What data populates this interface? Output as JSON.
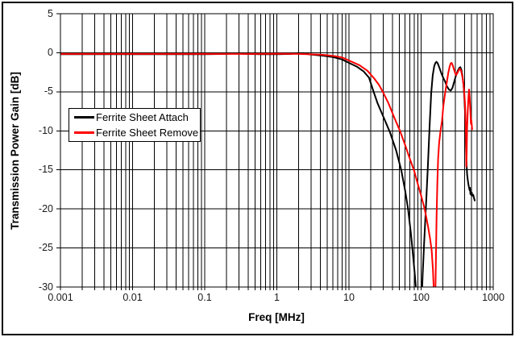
{
  "figure": {
    "background_color": "#ffffff",
    "border_color": "#000000",
    "grid_color": "#000000"
  },
  "chart_data": {
    "type": "line",
    "title": "",
    "xlabel": "Freq [MHz]",
    "ylabel": "Transmission Power Gain [dB]",
    "x_scale": "log",
    "x_range": [
      0.001,
      1000
    ],
    "y_range": [
      -30,
      5
    ],
    "y_tick_step": 5,
    "x_ticks": [
      "0.001",
      "0.01",
      "0.1",
      "1",
      "10",
      "100",
      "1000"
    ],
    "y_ticks": [
      "5",
      "0",
      "-5",
      "-10",
      "-15",
      "-20",
      "-25",
      "-30"
    ],
    "grid": "vertical log major+minor lines and horizontal 5 dB lines, solid black",
    "legend_position": "inside middle-left",
    "series": [
      {
        "name": "Ferrite Sheet Attach",
        "color": "#000000",
        "points": [
          [
            0.001,
            -0.18
          ],
          [
            0.005,
            -0.18
          ],
          [
            0.01,
            -0.18
          ],
          [
            0.05,
            -0.18
          ],
          [
            0.1,
            -0.18
          ],
          [
            0.2,
            -0.15
          ],
          [
            0.28,
            -0.06
          ],
          [
            0.35,
            -0.15
          ],
          [
            0.6,
            -0.18
          ],
          [
            1,
            -0.18
          ],
          [
            1.6,
            -0.15
          ],
          [
            1.9,
            -0.05
          ],
          [
            2.4,
            -0.05
          ],
          [
            2.8,
            -0.2
          ],
          [
            3.5,
            -0.3
          ],
          [
            4.5,
            -0.4
          ],
          [
            6,
            -0.55
          ],
          [
            8,
            -0.85
          ],
          [
            10,
            -1.3
          ],
          [
            13,
            -1.8
          ],
          [
            16,
            -2.4
          ],
          [
            19,
            -3.2
          ],
          [
            22,
            -5
          ],
          [
            25,
            -6.5
          ],
          [
            30,
            -8.2
          ],
          [
            37,
            -10.2
          ],
          [
            45,
            -12.5
          ],
          [
            53,
            -15
          ],
          [
            60,
            -17.6
          ],
          [
            66,
            -20
          ],
          [
            72,
            -23
          ],
          [
            76,
            -25.2
          ],
          [
            80,
            -27.4
          ],
          [
            84,
            -29.6
          ],
          [
            87,
            -32
          ],
          [
            96,
            -35
          ],
          [
            102,
            -31.5
          ],
          [
            105,
            -28.5
          ],
          [
            110,
            -24.5
          ],
          [
            117,
            -19.5
          ],
          [
            124,
            -14.5
          ],
          [
            131,
            -9.5
          ],
          [
            138,
            -5.2
          ],
          [
            145,
            -2.9
          ],
          [
            152,
            -1.7
          ],
          [
            158,
            -1.3
          ],
          [
            163,
            -1.15
          ],
          [
            170,
            -1.35
          ],
          [
            180,
            -1.95
          ],
          [
            193,
            -2.75
          ],
          [
            205,
            -3.3
          ],
          [
            215,
            -3.7
          ],
          [
            228,
            -4.3
          ],
          [
            243,
            -4.7
          ],
          [
            258,
            -4.85
          ],
          [
            272,
            -4.5
          ],
          [
            288,
            -3.7
          ],
          [
            305,
            -2.9
          ],
          [
            322,
            -2.3
          ],
          [
            338,
            -1.95
          ],
          [
            350,
            -1.85
          ],
          [
            362,
            -2.2
          ],
          [
            375,
            -3
          ],
          [
            388,
            -4.2
          ],
          [
            398,
            -5.8
          ],
          [
            408,
            -8
          ],
          [
            417,
            -11
          ],
          [
            425,
            -13.8
          ],
          [
            435,
            -15.6
          ],
          [
            448,
            -16.6
          ],
          [
            460,
            -17.2
          ],
          [
            470,
            -17.6
          ],
          [
            477,
            -17.3
          ],
          [
            483,
            -18.1
          ],
          [
            495,
            -18.2
          ],
          [
            505,
            -17.9
          ],
          [
            512,
            -18.3
          ],
          [
            528,
            -18.2
          ],
          [
            545,
            -18.7
          ],
          [
            558,
            -19
          ]
        ]
      },
      {
        "name": "Ferrite Sheet Remove",
        "color": "#ff0000",
        "points": [
          [
            0.001,
            -0.15
          ],
          [
            0.01,
            -0.15
          ],
          [
            0.1,
            -0.15
          ],
          [
            0.5,
            -0.15
          ],
          [
            1,
            -0.12
          ],
          [
            2,
            -0.15
          ],
          [
            3,
            -0.2
          ],
          [
            4,
            -0.25
          ],
          [
            5,
            -0.32
          ],
          [
            6.5,
            -0.45
          ],
          [
            8,
            -0.6
          ],
          [
            10,
            -1.0
          ],
          [
            14,
            -1.6
          ],
          [
            18,
            -2.3
          ],
          [
            22,
            -3.2
          ],
          [
            26,
            -4.1
          ],
          [
            29.5,
            -5
          ],
          [
            35,
            -6.4
          ],
          [
            42,
            -8.2
          ],
          [
            51,
            -10
          ],
          [
            60,
            -11.8
          ],
          [
            70,
            -13.6
          ],
          [
            80,
            -15.1
          ],
          [
            90,
            -16.8
          ],
          [
            100,
            -18.3
          ],
          [
            112,
            -20
          ],
          [
            125,
            -22.3
          ],
          [
            133,
            -23.8
          ],
          [
            140,
            -25.3
          ],
          [
            146,
            -27.8
          ],
          [
            150,
            -30.5
          ],
          [
            153,
            -33
          ],
          [
            157,
            -32
          ],
          [
            160,
            -27
          ],
          [
            164,
            -21
          ],
          [
            168,
            -16.5
          ],
          [
            172,
            -13.6
          ],
          [
            178,
            -11.5
          ],
          [
            186,
            -10
          ],
          [
            195,
            -8.7
          ],
          [
            203,
            -6.9
          ],
          [
            214,
            -5.3
          ],
          [
            226,
            -3.9
          ],
          [
            238,
            -2.6
          ],
          [
            248,
            -1.8
          ],
          [
            257,
            -1.35
          ],
          [
            265,
            -1.3
          ],
          [
            274,
            -1.6
          ],
          [
            285,
            -2.1
          ],
          [
            296,
            -2.6
          ],
          [
            306,
            -2.85
          ],
          [
            318,
            -2.6
          ],
          [
            330,
            -2.3
          ],
          [
            342,
            -2.05
          ],
          [
            350,
            -2.1
          ],
          [
            360,
            -2.4
          ],
          [
            372,
            -3
          ],
          [
            385,
            -3.9
          ],
          [
            396,
            -5
          ],
          [
            406,
            -6.6
          ],
          [
            414,
            -8.6
          ],
          [
            420,
            -11.5
          ],
          [
            424,
            -14.6
          ],
          [
            429,
            -12.6
          ],
          [
            435,
            -9.6
          ],
          [
            443,
            -7.4
          ],
          [
            453,
            -5.8
          ],
          [
            462,
            -4.7
          ],
          [
            471,
            -5.7
          ],
          [
            481,
            -7.3
          ],
          [
            490,
            -9.1
          ],
          [
            497,
            -8.6
          ],
          [
            504,
            -9.3
          ],
          [
            511,
            -9.9
          ]
        ]
      }
    ]
  }
}
